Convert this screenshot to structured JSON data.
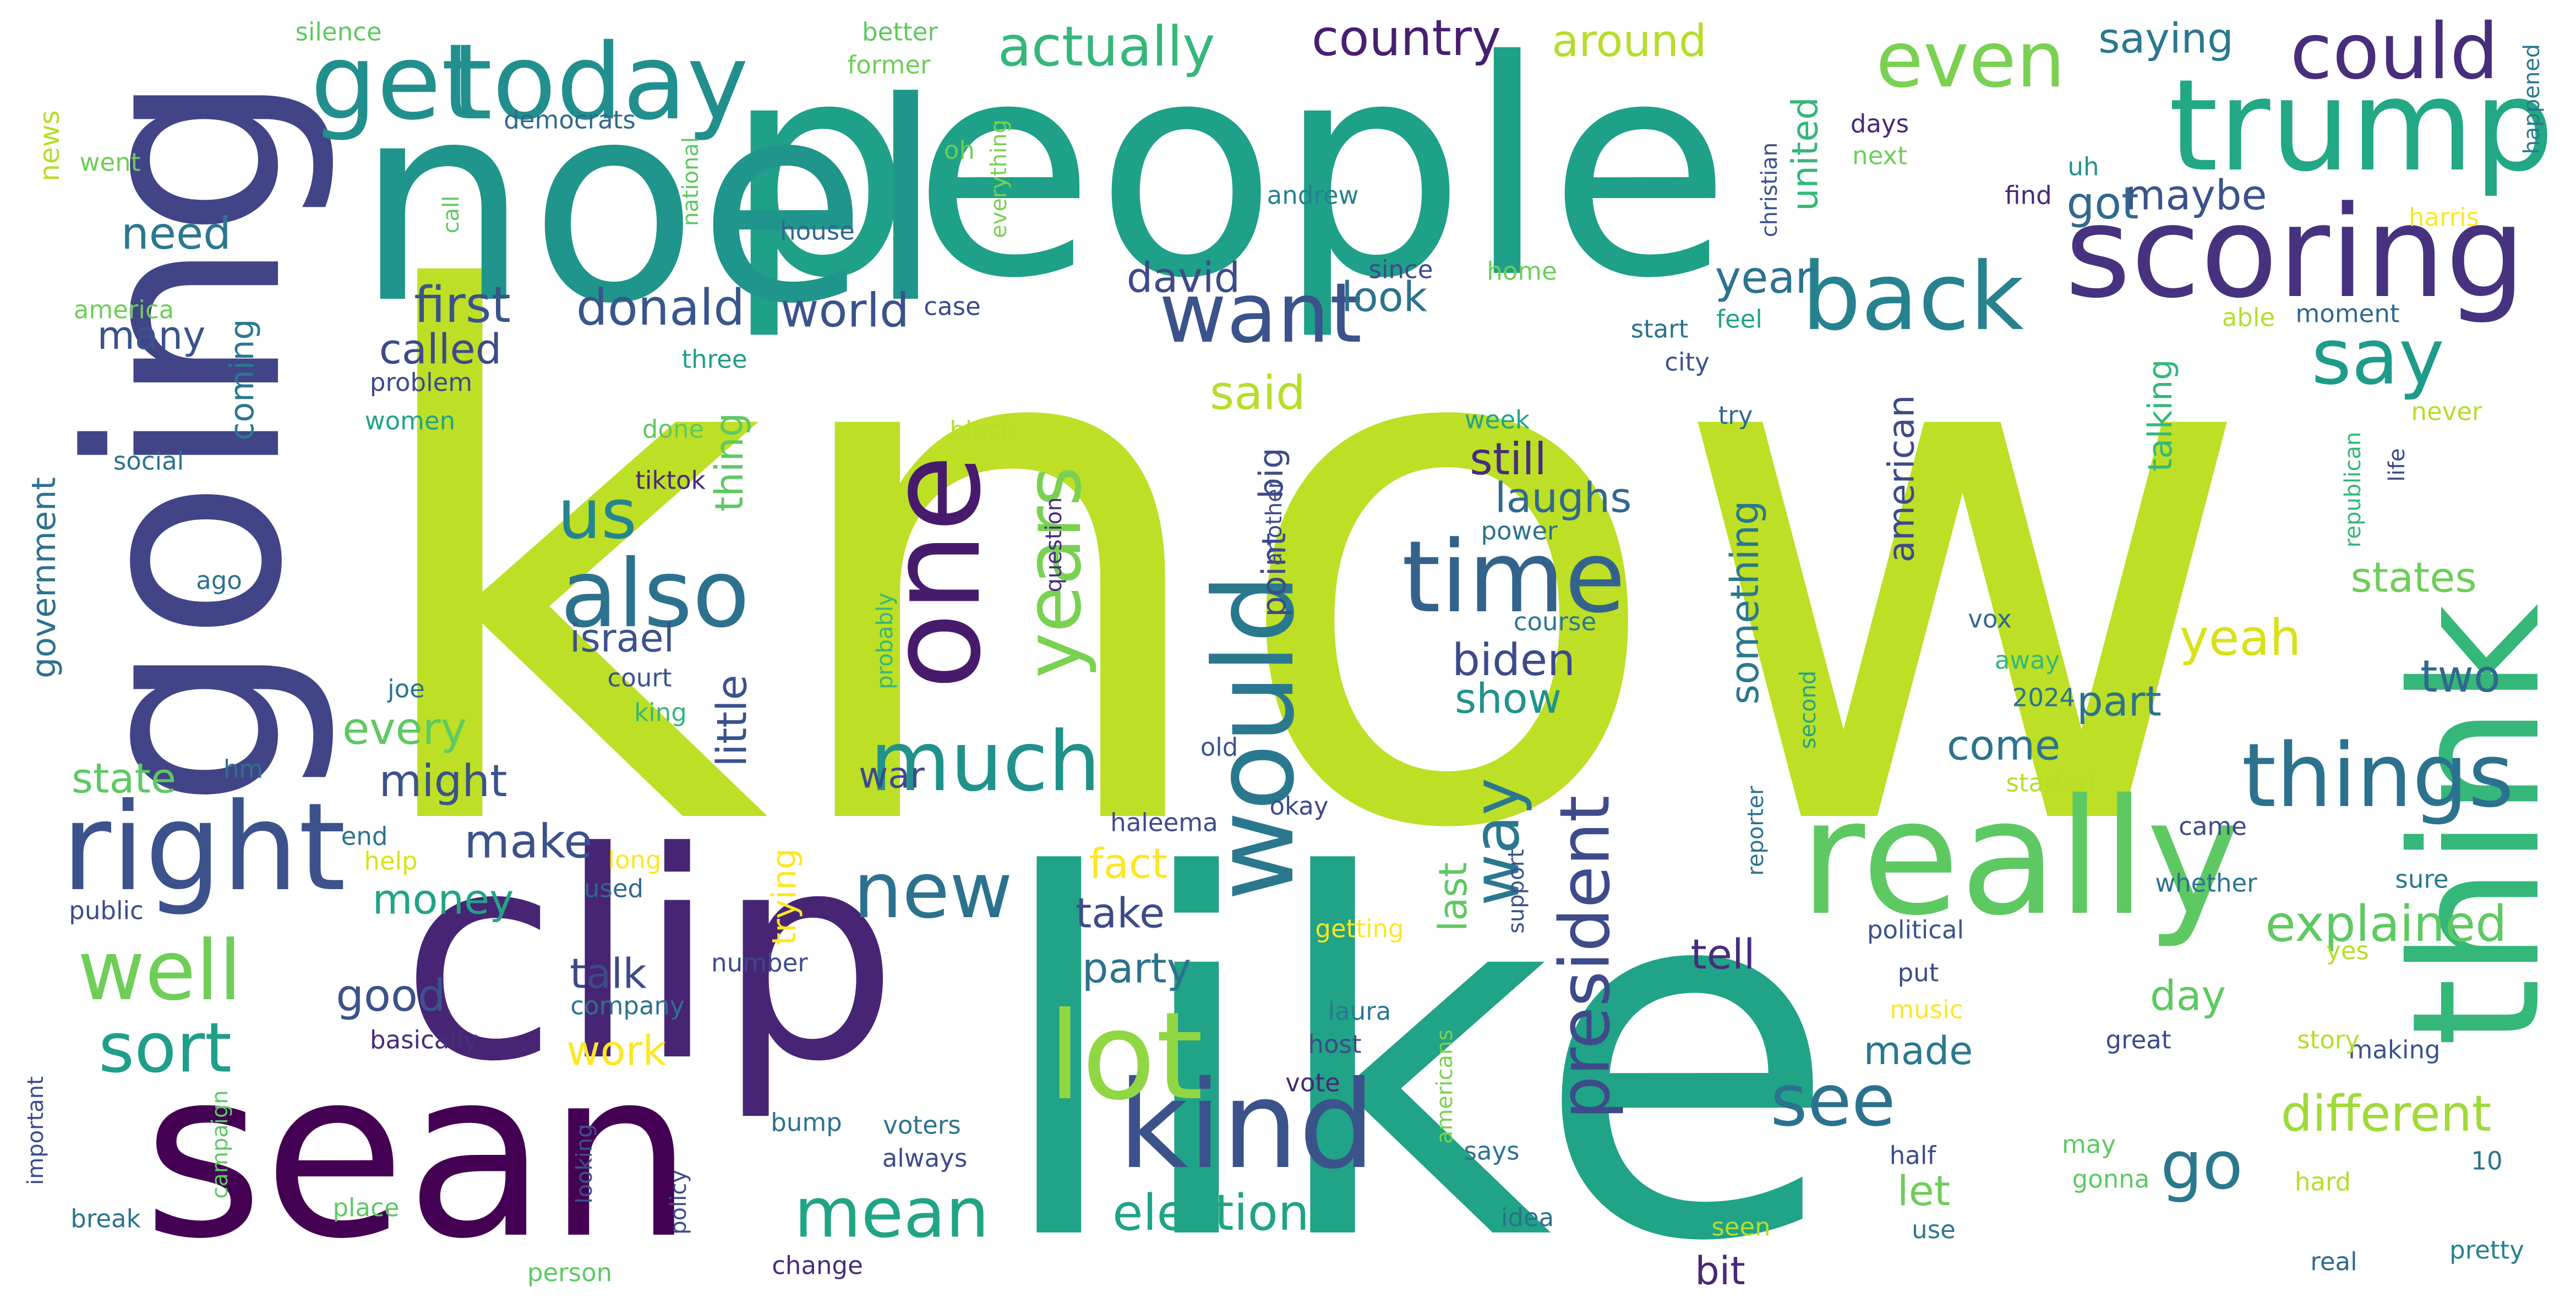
{
  "cloud": {
    "background": "#ffffff",
    "palette": [
      "#440154",
      "#482878",
      "#3e4a89",
      "#31688e",
      "#26828e",
      "#1f9e89",
      "#35b779",
      "#6ece58",
      "#b5de2b",
      "#fde725"
    ],
    "words": [
      {
        "text": "know",
        "color": "#bddf26"
      },
      {
        "text": "like",
        "color": "#20a386"
      },
      {
        "text": "people",
        "color": "#1fa088"
      },
      {
        "text": "clip",
        "color": "#482475"
      },
      {
        "text": "sean",
        "color": "#440154"
      },
      {
        "text": "noel",
        "color": "#1f958b"
      },
      {
        "text": "going",
        "color": "#414487"
      },
      {
        "text": "think",
        "color": "#35b779"
      },
      {
        "text": "really",
        "color": "#5ec962"
      },
      {
        "text": "scoring",
        "color": "#46327e"
      },
      {
        "text": "trump",
        "color": "#22a884"
      },
      {
        "text": "get",
        "color": "#218f8d"
      },
      {
        "text": "today",
        "color": "#218f8d"
      },
      {
        "text": "right",
        "color": "#3b528b"
      },
      {
        "text": "one",
        "color": "#481a6c"
      },
      {
        "text": "kind",
        "color": "#3b528b"
      },
      {
        "text": "would",
        "color": "#2a788e"
      },
      {
        "text": "lot",
        "color": "#90d743"
      },
      {
        "text": "time",
        "color": "#33638d"
      },
      {
        "text": "also",
        "color": "#2c728e"
      },
      {
        "text": "back",
        "color": "#26828e"
      },
      {
        "text": "things",
        "color": "#2c728e"
      },
      {
        "text": "want",
        "color": "#3b528b"
      },
      {
        "text": "much",
        "color": "#21918c"
      },
      {
        "text": "years",
        "color": "#7ad151"
      },
      {
        "text": "well",
        "color": "#6ece58"
      },
      {
        "text": "new",
        "color": "#2c728e"
      },
      {
        "text": "see",
        "color": "#2c728e"
      },
      {
        "text": "say",
        "color": "#1e9b8a"
      },
      {
        "text": "could",
        "color": "#472d7b"
      },
      {
        "text": "even",
        "color": "#7ad151"
      },
      {
        "text": "president",
        "color": "#3e4a89"
      },
      {
        "text": "mean",
        "color": "#20a486"
      },
      {
        "text": "way",
        "color": "#2a788e"
      },
      {
        "text": "us",
        "color": "#25858e"
      },
      {
        "text": "sort",
        "color": "#1f9e89"
      },
      {
        "text": "actually",
        "color": "#35b779"
      },
      {
        "text": "country",
        "color": "#481f70"
      },
      {
        "text": "go",
        "color": "#2a788e"
      },
      {
        "text": "election",
        "color": "#20a386"
      },
      {
        "text": "explained",
        "color": "#5ec962"
      },
      {
        "text": "different",
        "color": "#a0da39"
      },
      {
        "text": "yeah",
        "color": "#d8e219"
      },
      {
        "text": "first",
        "color": "#3b528b"
      },
      {
        "text": "donald",
        "color": "#39568c"
      },
      {
        "text": "world",
        "color": "#3b528b"
      },
      {
        "text": "around",
        "color": "#b5de2b"
      },
      {
        "text": "saying",
        "color": "#2a788e"
      },
      {
        "text": "look",
        "color": "#2c728e"
      },
      {
        "text": "called",
        "color": "#3e4a89"
      },
      {
        "text": "said",
        "color": "#b5de2b"
      },
      {
        "text": "need",
        "color": "#2a788e"
      },
      {
        "text": "many",
        "color": "#3b528b"
      },
      {
        "text": "maybe",
        "color": "#3b528b"
      },
      {
        "text": "got",
        "color": "#31688e"
      },
      {
        "text": "year",
        "color": "#2c728e"
      },
      {
        "text": "david",
        "color": "#3e4a89"
      },
      {
        "text": "still",
        "color": "#472d7b"
      },
      {
        "text": "laughs",
        "color": "#31688e"
      },
      {
        "text": "biden",
        "color": "#3e4a89"
      },
      {
        "text": "show",
        "color": "#21918c"
      },
      {
        "text": "israel",
        "color": "#3b528b"
      },
      {
        "text": "every",
        "color": "#5ec962"
      },
      {
        "text": "might",
        "color": "#3b528b"
      },
      {
        "text": "state",
        "color": "#5ec962"
      },
      {
        "text": "make",
        "color": "#3b528b"
      },
      {
        "text": "money",
        "color": "#20a486"
      },
      {
        "text": "good",
        "color": "#3b528b"
      },
      {
        "text": "talk",
        "color": "#3e4a89"
      },
      {
        "text": "work",
        "color": "#fde725"
      },
      {
        "text": "fact",
        "color": "#fde725"
      },
      {
        "text": "take",
        "color": "#3e4a89"
      },
      {
        "text": "party",
        "color": "#2c728e"
      },
      {
        "text": "two",
        "color": "#31688e"
      },
      {
        "text": "part",
        "color": "#2c728e"
      },
      {
        "text": "come",
        "color": "#2c728e"
      },
      {
        "text": "states",
        "color": "#6ece58"
      },
      {
        "text": "day",
        "color": "#5ec962"
      },
      {
        "text": "made",
        "color": "#2a788e"
      },
      {
        "text": "let",
        "color": "#6ece58"
      },
      {
        "text": "tell",
        "color": "#472d7b"
      },
      {
        "text": "bit",
        "color": "#482878"
      },
      {
        "text": "war",
        "color": "#3e4a89"
      },
      {
        "text": "thing",
        "color": "#5ec962"
      },
      {
        "text": "little",
        "color": "#3b528b"
      },
      {
        "text": "last",
        "color": "#5ec962"
      },
      {
        "text": "something",
        "color": "#2a788e"
      },
      {
        "text": "american",
        "color": "#3e4a89"
      },
      {
        "text": "united",
        "color": "#35b779"
      },
      {
        "text": "talking",
        "color": "#35b779"
      },
      {
        "text": "coming",
        "color": "#2a788e"
      },
      {
        "text": "government",
        "color": "#2c728e"
      },
      {
        "text": "trying",
        "color": "#fde725"
      },
      {
        "text": "point",
        "color": "#3e4a89"
      },
      {
        "text": "big",
        "color": "#3e4a89"
      },
      {
        "text": "news",
        "color": "#b5de2b"
      },
      {
        "text": "silence",
        "color": "#5ec962"
      },
      {
        "text": "better",
        "color": "#5ec962"
      },
      {
        "text": "former",
        "color": "#6ece58"
      },
      {
        "text": "democrats",
        "color": "#31688e"
      },
      {
        "text": "went",
        "color": "#6ece58"
      },
      {
        "text": "oh",
        "color": "#6ece58"
      },
      {
        "text": "house",
        "color": "#31688e"
      },
      {
        "text": "national",
        "color": "#5ec962"
      },
      {
        "text": "everything",
        "color": "#7ad151"
      },
      {
        "text": "christian",
        "color": "#3b528b"
      },
      {
        "text": "happened",
        "color": "#2a788e"
      },
      {
        "text": "days",
        "color": "#482878"
      },
      {
        "text": "next",
        "color": "#6ece58"
      },
      {
        "text": "uh",
        "color": "#21918c"
      },
      {
        "text": "find",
        "color": "#482878"
      },
      {
        "text": "andrew",
        "color": "#26828e"
      },
      {
        "text": "since",
        "color": "#3e4a89"
      },
      {
        "text": "call",
        "color": "#5ec962"
      },
      {
        "text": "america",
        "color": "#6ece58"
      },
      {
        "text": "case",
        "color": "#3e4a89"
      },
      {
        "text": "home",
        "color": "#6ece58"
      },
      {
        "text": "start",
        "color": "#2c728e"
      },
      {
        "text": "feel",
        "color": "#20a486"
      },
      {
        "text": "harris",
        "color": "#fde725"
      },
      {
        "text": "able",
        "color": "#b5de2b"
      },
      {
        "text": "moment",
        "color": "#31688e"
      },
      {
        "text": "three",
        "color": "#1f9e89"
      },
      {
        "text": "city",
        "color": "#3b528b"
      },
      {
        "text": "problem",
        "color": "#3e4a89"
      },
      {
        "text": "women",
        "color": "#20a486"
      },
      {
        "text": "week",
        "color": "#20a486"
      },
      {
        "text": "try",
        "color": "#31688e"
      },
      {
        "text": "never",
        "color": "#b5de2b"
      },
      {
        "text": "social",
        "color": "#2c728e"
      },
      {
        "text": "done",
        "color": "#5ec962"
      },
      {
        "text": "black",
        "color": "#b5de2b"
      },
      {
        "text": "tiktok",
        "color": "#482878"
      },
      {
        "text": "republican",
        "color": "#35b779"
      },
      {
        "text": "life",
        "color": "#3e4a89"
      },
      {
        "text": "power",
        "color": "#2c728e"
      },
      {
        "text": "another",
        "color": "#3e4a89"
      },
      {
        "text": "ago",
        "color": "#2c728e"
      },
      {
        "text": "question",
        "color": "#472d7b"
      },
      {
        "text": "probably",
        "color": "#35b779"
      },
      {
        "text": "course",
        "color": "#2a788e"
      },
      {
        "text": "vox",
        "color": "#31688e"
      },
      {
        "text": "away",
        "color": "#35b779"
      },
      {
        "text": "joe",
        "color": "#2c728e"
      },
      {
        "text": "court",
        "color": "#3b528b"
      },
      {
        "text": "king",
        "color": "#35b779"
      },
      {
        "text": "hm",
        "color": "#2c728e"
      },
      {
        "text": "2024",
        "color": "#2c728e"
      },
      {
        "text": "second",
        "color": "#20a486"
      },
      {
        "text": "old",
        "color": "#3b528b"
      },
      {
        "text": "reporter",
        "color": "#2c728e"
      },
      {
        "text": "started",
        "color": "#b5de2b"
      },
      {
        "text": "haleema",
        "color": "#3e4a89"
      },
      {
        "text": "okay",
        "color": "#3e4a89"
      },
      {
        "text": "came",
        "color": "#3e4a89"
      },
      {
        "text": "end",
        "color": "#2c728e"
      },
      {
        "text": "help",
        "color": "#d8e219"
      },
      {
        "text": "long",
        "color": "#fde725"
      },
      {
        "text": "support",
        "color": "#3b528b"
      },
      {
        "text": "whether",
        "color": "#2c728e"
      },
      {
        "text": "sure",
        "color": "#2a788e"
      },
      {
        "text": "public",
        "color": "#3e4a89"
      },
      {
        "text": "used",
        "color": "#31688e"
      },
      {
        "text": "getting",
        "color": "#fde725"
      },
      {
        "text": "political",
        "color": "#3b528b"
      },
      {
        "text": "yes",
        "color": "#b5de2b"
      },
      {
        "text": "number",
        "color": "#3e4a89"
      },
      {
        "text": "company",
        "color": "#2c728e"
      },
      {
        "text": "laura",
        "color": "#2a788e"
      },
      {
        "text": "put",
        "color": "#3e4a89"
      },
      {
        "text": "music",
        "color": "#fde725"
      },
      {
        "text": "making",
        "color": "#3b528b"
      },
      {
        "text": "basically",
        "color": "#472d7b"
      },
      {
        "text": "host",
        "color": "#3e4a89"
      },
      {
        "text": "great",
        "color": "#3e4a89"
      },
      {
        "text": "story",
        "color": "#b5de2b"
      },
      {
        "text": "important",
        "color": "#3e4a89"
      },
      {
        "text": "vote",
        "color": "#482878"
      },
      {
        "text": "campaign",
        "color": "#5ec962"
      },
      {
        "text": "voters",
        "color": "#2c728e"
      },
      {
        "text": "bump",
        "color": "#2c728e"
      },
      {
        "text": "americans",
        "color": "#7ad151"
      },
      {
        "text": "always",
        "color": "#3e4a89"
      },
      {
        "text": "says",
        "color": "#2c728e"
      },
      {
        "text": "half",
        "color": "#3e4a89"
      },
      {
        "text": "may",
        "color": "#5ec962"
      },
      {
        "text": "10",
        "color": "#2c728e"
      },
      {
        "text": "break",
        "color": "#2c728e"
      },
      {
        "text": "place",
        "color": "#5ec962"
      },
      {
        "text": "looking",
        "color": "#3b528b"
      },
      {
        "text": "policy",
        "color": "#3e4a89"
      },
      {
        "text": "idea",
        "color": "#2c728e"
      },
      {
        "text": "gonna",
        "color": "#5ec962"
      },
      {
        "text": "hard",
        "color": "#b5de2b"
      },
      {
        "text": "use",
        "color": "#2a788e"
      },
      {
        "text": "seen",
        "color": "#b5de2b"
      },
      {
        "text": "pretty",
        "color": "#26828e"
      },
      {
        "text": "person",
        "color": "#5ec962"
      },
      {
        "text": "change",
        "color": "#472d7b"
      },
      {
        "text": "real",
        "color": "#31688e"
      }
    ]
  }
}
